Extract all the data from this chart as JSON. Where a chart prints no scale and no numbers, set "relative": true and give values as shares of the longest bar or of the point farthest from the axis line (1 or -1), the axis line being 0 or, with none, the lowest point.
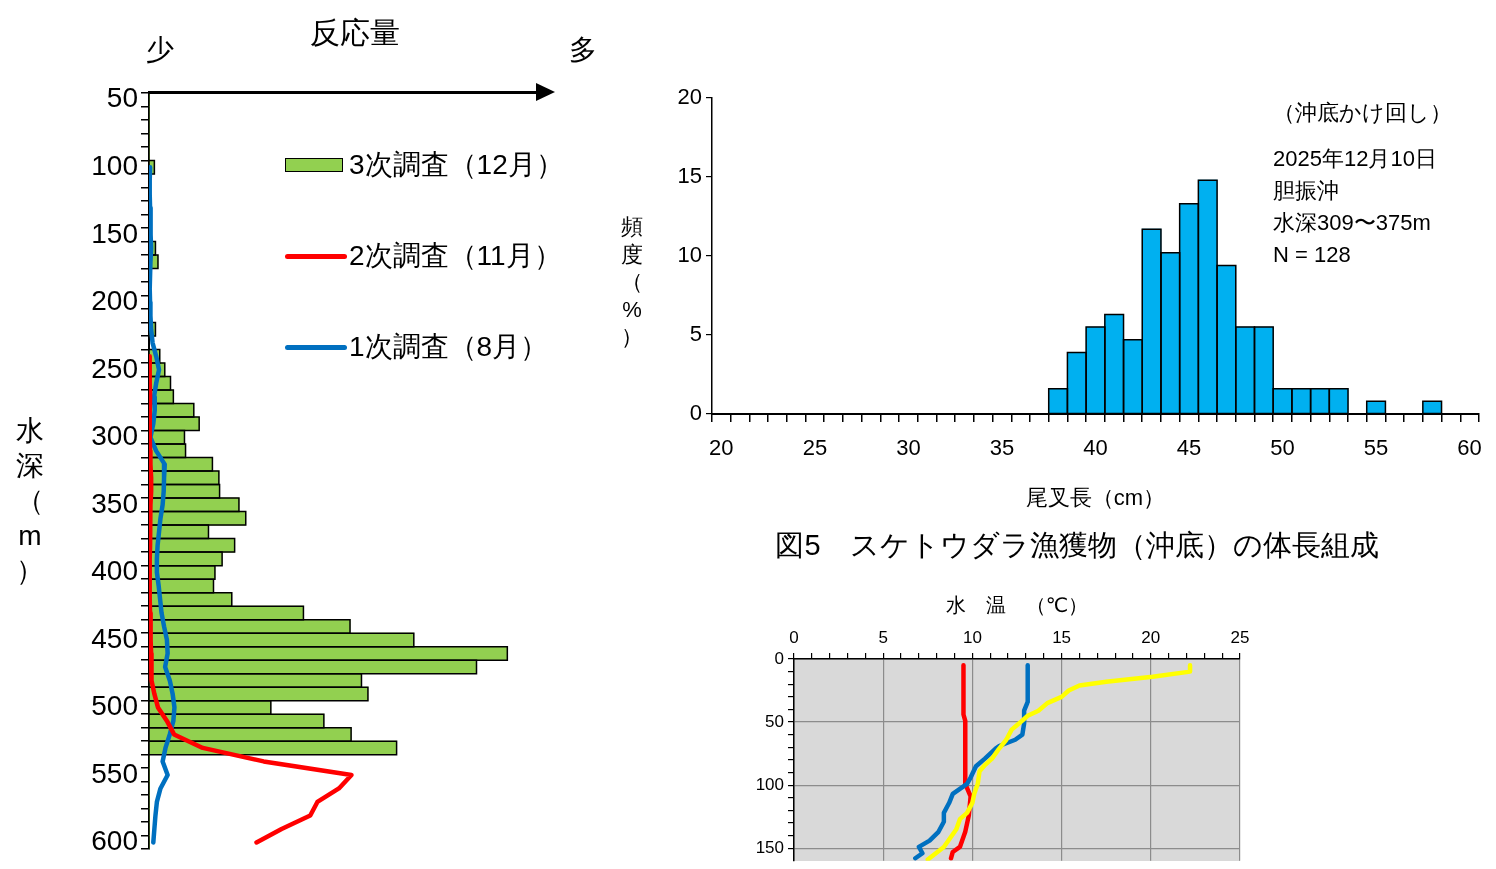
{
  "chart_data": [
    {
      "type": "bar",
      "orientation": "horizontal",
      "relative": true,
      "xlabel": "反応量",
      "ylabel": "水深（m）",
      "annotations": [
        "少",
        "多"
      ],
      "legend": "top right",
      "marker": "none",
      "categories": [
        "50",
        null,
        null,
        null,
        null,
        "100",
        null,
        null,
        null,
        null,
        "150",
        null,
        null,
        null,
        null,
        "200",
        null,
        null,
        null,
        null,
        "250",
        null,
        null,
        null,
        null,
        "300",
        null,
        null,
        null,
        null,
        "350",
        null,
        null,
        null,
        null,
        "400",
        null,
        null,
        null,
        null,
        "450",
        null,
        null,
        null,
        null,
        "500",
        null,
        null,
        null,
        null,
        "550",
        null,
        null,
        null,
        null,
        "600"
      ],
      "series": [
        {
          "name": "3次調査（12月）",
          "type": "bar",
          "color": "#92d050",
          "values": [
            0,
            0,
            0,
            0,
            0,
            0.015,
            0,
            0,
            0,
            null,
            0,
            0.018,
            0.025,
            null,
            0,
            0,
            null,
            0.018,
            null,
            0.03,
            0.044,
            0.06,
            0.068,
            0.125,
            0.14,
            0.099,
            0.102,
            0.177,
            0.195,
            0.197,
            0.251,
            0.27,
            0.166,
            0.239,
            0.204,
            0.184,
            0.18,
            0.231,
            0.431,
            0.561,
            0.739,
            1,
            0.914,
            0.593,
            0.611,
            0.34,
            0.488,
            0.564,
            0.691,
            0,
            0,
            0,
            0,
            0,
            0,
            0
          ]
        },
        {
          "name": "2次調査（11月）",
          "type": "line",
          "color": "#ff0000",
          "values": [
            null,
            null,
            null,
            null,
            null,
            null,
            null,
            null,
            null,
            null,
            null,
            null,
            null,
            null,
            null,
            null,
            null,
            null,
            null,
            0.002,
            0.002,
            0.002,
            0.003,
            0.002,
            0.002,
            0.002,
            0.003,
            0.004,
            0.006,
            0.006,
            0.004,
            0.003,
            0.003,
            0.003,
            0.002,
            0.002,
            0.002,
            0.002,
            0.003,
            0.004,
            0.005,
            0.006,
            0.006,
            0.008,
            0.015,
            0.025,
            0.05,
            0.07,
            0.15,
            0.32,
            0.565,
            0.53,
            0.47,
            0.45,
            0.37,
            0.3
          ]
        },
        {
          "name": "1次調査（8月）",
          "type": "line",
          "color": "#0070c0",
          "values": [
            null,
            null,
            null,
            null,
            null,
            0.003,
            0.002,
            0.002,
            0.003,
            0.004,
            0.005,
            0.006,
            0.004,
            0.003,
            0.002,
            0.003,
            0.004,
            0.006,
            0.01,
            0.02,
            0.028,
            0.02,
            0.014,
            0.016,
            0.012,
            0.004,
            0.02,
            0.044,
            0.042,
            0.041,
            0.038,
            0.032,
            0.028,
            0.024,
            0.022,
            0.022,
            0.027,
            0.031,
            0.035,
            0.042,
            0.05,
            0.052,
            0.045,
            0.058,
            0.066,
            0.071,
            0.068,
            0.058,
            0.046,
            0.038,
            0.052,
            0.032,
            0.022,
            0.018,
            0.015,
            0.012
          ]
        }
      ]
    },
    {
      "type": "bar",
      "title": "図5　スケトウダラ漁獲物（沖底）の体長組成",
      "xlabel": "尾叉長（cm）",
      "ylabel": "頻度（%）",
      "color": "#00b0f0",
      "annotations": [
        "（沖底かけ回し）",
        "2025年12月10日",
        "胆振沖",
        "水深309〜375m",
        "N = 128"
      ],
      "categories": [
        "20",
        null,
        null,
        null,
        null,
        "25",
        null,
        null,
        null,
        null,
        "30",
        null,
        null,
        null,
        null,
        "35",
        null,
        null,
        null,
        null,
        "40",
        null,
        null,
        null,
        null,
        "45",
        null,
        null,
        null,
        null,
        "50",
        null,
        null,
        null,
        null,
        "55",
        null,
        null,
        null,
        null,
        "60"
      ],
      "values": [
        null,
        null,
        null,
        null,
        null,
        null,
        null,
        null,
        null,
        null,
        null,
        null,
        null,
        null,
        null,
        null,
        null,
        null,
        1.6,
        3.9,
        5.5,
        6.3,
        4.7,
        11.7,
        10.2,
        13.3,
        14.8,
        9.4,
        5.5,
        5.5,
        1.6,
        1.6,
        1.6,
        1.6,
        null,
        0.8,
        null,
        null,
        0.8,
        null,
        null
      ],
      "ylim": [
        0,
        20
      ],
      "yticks": [
        0,
        5,
        10,
        15,
        20
      ]
    },
    {
      "type": "line",
      "xlabel": "水　温　（℃）",
      "grid": true,
      "marker": "none",
      "xlim": [
        0,
        25
      ],
      "ylim": [
        160,
        0
      ],
      "xticks": [
        0,
        {
          "value": 1,
          "label": null
        },
        {
          "value": 2,
          "label": null
        },
        {
          "value": 3,
          "label": null
        },
        {
          "value": 4,
          "label": null
        },
        5,
        {
          "value": 6,
          "label": null
        },
        {
          "value": 7,
          "label": null
        },
        {
          "value": 8,
          "label": null
        },
        {
          "value": 9,
          "label": null
        },
        10,
        {
          "value": 11,
          "label": null
        },
        {
          "value": 12,
          "label": null
        },
        {
          "value": 13,
          "label": null
        },
        {
          "value": 14,
          "label": null
        },
        15,
        {
          "value": 16,
          "label": null
        },
        {
          "value": 17,
          "label": null
        },
        {
          "value": 18,
          "label": null
        },
        {
          "value": 19,
          "label": null
        },
        20,
        {
          "value": 21,
          "label": null
        },
        {
          "value": 22,
          "label": null
        },
        {
          "value": 23,
          "label": null
        },
        {
          "value": 24,
          "label": null
        },
        25
      ],
      "yticks": [
        0,
        {
          "value": 10,
          "label": null
        },
        {
          "value": 20,
          "label": null
        },
        {
          "value": 30,
          "label": null
        },
        {
          "value": 40,
          "label": null
        },
        50,
        {
          "value": 60,
          "label": null
        },
        {
          "value": 70,
          "label": null
        },
        {
          "value": 80,
          "label": null
        },
        {
          "value": 90,
          "label": null
        },
        100,
        {
          "value": 110,
          "label": null
        },
        {
          "value": 120,
          "label": null
        },
        {
          "value": 130,
          "label": null
        },
        {
          "value": 140,
          "label": null
        },
        150
      ],
      "series": [
        {
          "color": "#ffff00",
          "x": [
            22.2,
            22.2,
            20.1,
            17.5,
            16.0,
            15.4,
            15.0,
            14.2,
            13.7,
            13.1,
            12.7,
            12.2,
            11.9,
            11.5,
            11.1,
            10.7,
            10.4,
            10.3,
            10.1,
            10.0,
            9.7,
            9.3,
            9.1,
            8.4,
            7.5
          ],
          "values": [
            5,
            10,
            14,
            18,
            21,
            25,
            30,
            35,
            41,
            45,
            50,
            56,
            64,
            71,
            79,
            84,
            89,
            99,
            107,
            114,
            122,
            127,
            135,
            149,
            159
          ]
        },
        {
          "color": "#0070c0",
          "x": [
            13.1,
            13.1,
            12.9,
            12.9,
            12.8,
            12.4,
            11.5,
            11.3,
            10.7,
            10.2,
            9.9,
            9.7,
            8.9,
            8.7,
            8.4,
            8.4,
            8.1,
            7.6,
            7.0,
            7.2,
            6.8
          ],
          "values": [
            5,
            34,
            41,
            51,
            60,
            64,
            69,
            71,
            79,
            85,
            94,
            99,
            107,
            114,
            122,
            129,
            137,
            144,
            149,
            154,
            158
          ]
        },
        {
          "color": "#ff0000",
          "x": [
            9.5,
            9.5,
            9.6,
            9.6,
            9.9,
            9.8,
            9.6,
            9.3,
            8.9,
            8.8
          ],
          "values": [
            5,
            44,
            49,
            99,
            109,
            124,
            137,
            149,
            153,
            158
          ]
        }
      ]
    }
  ]
}
